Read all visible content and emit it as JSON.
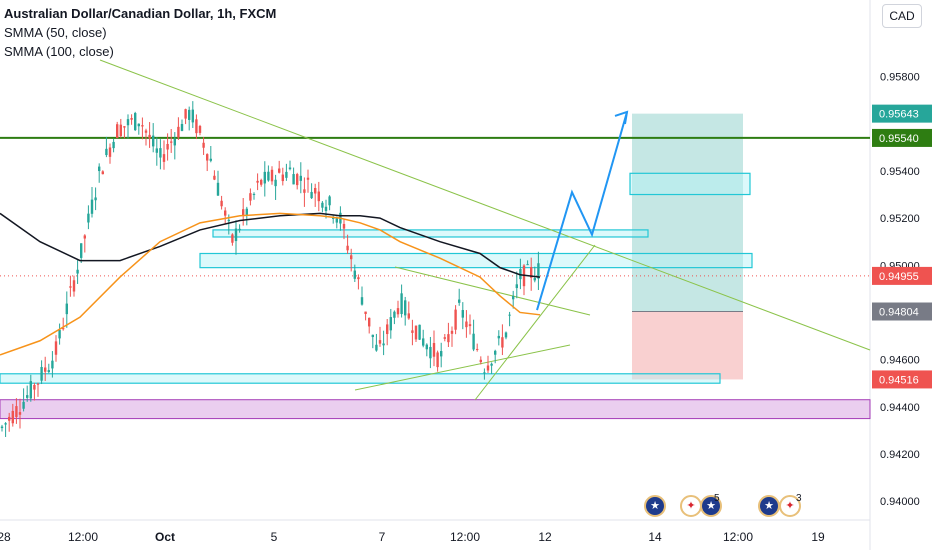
{
  "legend": {
    "title": "Australian Dollar/Canadian Dollar, 1h, FXCM",
    "ma1": "SMMA (50, close)",
    "ma2": "SMMA (100, close)"
  },
  "currency_button": "CAD",
  "colors": {
    "up": "#26a69a",
    "down": "#ef5350",
    "smma50": "#f7931a",
    "smma100": "#131722",
    "zone_fill": "#b2f1f7",
    "zone_border": "#22c7d6",
    "purple_zone": "#e8c9ee",
    "green_line": "#2e7d12",
    "trendline": "#8bc34a",
    "projection": "#2196f3",
    "target_zone": "#b2dfdb",
    "stop_zone": "#f8c8c8"
  },
  "chart_data": {
    "type": "candlestick",
    "symbol": "AUDCAD",
    "timeframe": "1h",
    "ylim": [
      0.9392,
      0.9604
    ],
    "y_ticks": [
      "0.94000",
      "0.94200",
      "0.94400",
      "0.94600",
      "0.95000",
      "0.95200",
      "0.95400",
      "0.95800"
    ],
    "x_ticks": [
      "28",
      "12:00",
      "Oct",
      "5",
      "7",
      "12:00",
      "12",
      "14",
      "12:00",
      "19"
    ],
    "price_labels": [
      {
        "text": "0.95643",
        "value": 0.95643,
        "color": "#26a69a"
      },
      {
        "text": "0.95540",
        "value": 0.9554,
        "color": "#2e7d12"
      },
      {
        "text": "0.94955",
        "value": 0.94955,
        "color": "#ef5350"
      },
      {
        "text": "0.94804",
        "value": 0.94804,
        "color": "#787b86"
      },
      {
        "text": "0.94516",
        "value": 0.94516,
        "color": "#ef5350"
      }
    ],
    "horizontal_line": {
      "value": 0.9554,
      "label": "0.95540"
    },
    "current_price": 0.94955,
    "smma50": [
      0.9462,
      0.9468,
      0.9478,
      0.9495,
      0.951,
      0.9518,
      0.9521,
      0.9522,
      0.9521,
      0.952,
      0.9518,
      0.9515,
      0.951,
      0.9503,
      0.9495,
      0.9487,
      0.948,
      0.9479
    ],
    "smma100": [
      0.9522,
      0.951,
      0.9502,
      0.9502,
      0.9508,
      0.9515,
      0.9519,
      0.9521,
      0.9522,
      0.9521,
      0.9521,
      0.952,
      0.9516,
      0.951,
      0.9505,
      0.9499,
      0.9496,
      0.9495
    ],
    "ma_x": [
      0,
      40,
      80,
      120,
      160,
      200,
      240,
      280,
      320,
      340,
      360,
      380,
      400,
      440,
      480,
      500,
      520,
      540
    ],
    "zones": [
      {
        "kind": "resistance",
        "x0": 630,
        "x1": 750,
        "low": 0.953,
        "high": 0.9539
      },
      {
        "kind": "resistance",
        "x0": 213,
        "x1": 648,
        "low": 0.9512,
        "high": 0.9515
      },
      {
        "kind": "resistance",
        "x0": 200,
        "x1": 752,
        "low": 0.9499,
        "high": 0.9505
      },
      {
        "kind": "support",
        "x0": 0,
        "x1": 720,
        "low": 0.945,
        "high": 0.9454
      }
    ],
    "purple_zone": {
      "low": 0.9435,
      "high": 0.9443
    },
    "position": {
      "entry": 0.94804,
      "target": 0.95643,
      "stop": 0.94516,
      "x0": 632,
      "x1": 743
    },
    "projection_path": [
      [
        537,
        0.9481
      ],
      [
        572,
        0.9531
      ],
      [
        592,
        0.9513
      ],
      [
        627,
        0.9565
      ]
    ]
  }
}
